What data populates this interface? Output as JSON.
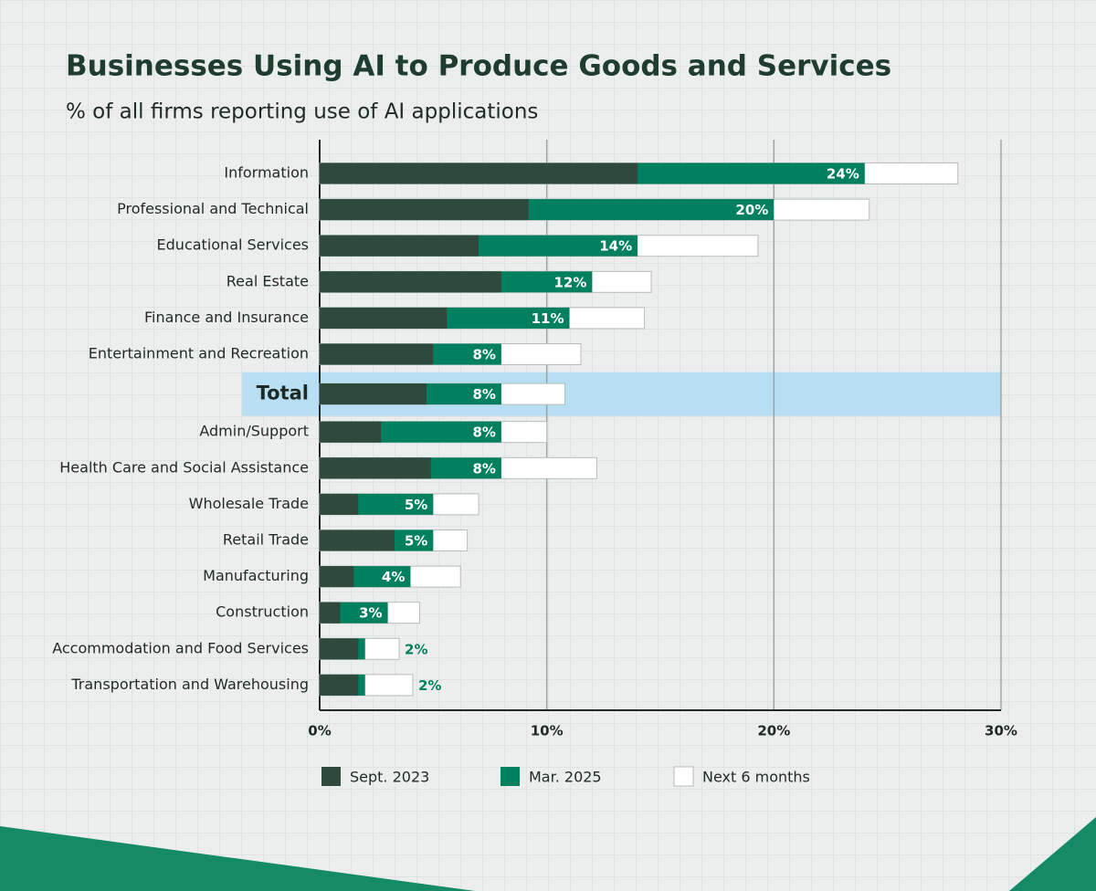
{
  "chart_data": {
    "type": "overlapping-bar",
    "title": "Businesses Using AI to Produce Goods and Services",
    "subtitle": "% of all firms reporting use of AI applications",
    "categories": [
      "Information",
      "Professional and Technical",
      "Educational Services",
      "Real Estate",
      "Finance and Insurance",
      "Entertainment and Recreation",
      "Total",
      "Admin/Support",
      "Health Care and Social  Assistance",
      "Wholesale Trade",
      "Retail Trade",
      "Manufacturing",
      "Construction",
      "Accommodation and Food Services",
      "Transportation and Warehousing"
    ],
    "highlight_index": 6,
    "series": [
      {
        "name": "Sept. 2023",
        "color": "#2f4a3c",
        "values": [
          14,
          9.2,
          7,
          8,
          5.6,
          5,
          4.7,
          2.7,
          4.9,
          1.7,
          3.3,
          1.5,
          0.9,
          1.7,
          1.7
        ]
      },
      {
        "name": "Mar. 2025",
        "color": "#00805f",
        "values": [
          24,
          20,
          14,
          12,
          11,
          8,
          8,
          8,
          8,
          5,
          5,
          4,
          3,
          2,
          2
        ],
        "value_labels": [
          "24%",
          "20%",
          "14%",
          "12%",
          "11%",
          "8%",
          "8%",
          "8%",
          "8%",
          "5%",
          "5%",
          "4%",
          "3%",
          "2%",
          "2%"
        ]
      },
      {
        "name": "Next 6 months",
        "color": "#ffffff",
        "values": [
          28.1,
          24.2,
          19.3,
          14.6,
          14.3,
          11.5,
          10.8,
          10,
          12.2,
          7,
          6.5,
          6.2,
          4.4,
          3.5,
          4.1
        ]
      }
    ],
    "xlim": [
      0,
      30
    ],
    "xticks": [
      {
        "value": 0,
        "label": "0%"
      },
      {
        "value": 10,
        "label": "10%"
      },
      {
        "value": 20,
        "label": "20%"
      },
      {
        "value": 30,
        "label": "30%"
      }
    ],
    "grid": true
  }
}
